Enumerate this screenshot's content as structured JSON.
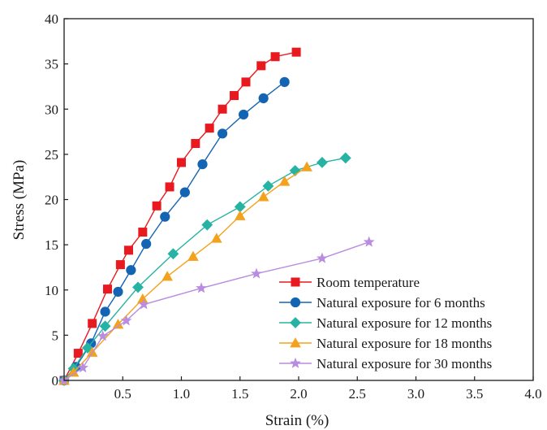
{
  "chart_data": {
    "type": "line",
    "title": "",
    "xlabel": "Strain (%)",
    "ylabel": "Stress (MPa)",
    "xlim": [
      0,
      4.0
    ],
    "ylim": [
      0,
      40
    ],
    "xticks": [
      0.5,
      1.0,
      1.5,
      2.0,
      2.5,
      3.0,
      3.5,
      4.0
    ],
    "xtick_labels": [
      "0.5",
      "1.0",
      "1.5",
      "2.0",
      "2.5",
      "3.0",
      "3.5",
      "4.0"
    ],
    "yticks": [
      0,
      5,
      10,
      15,
      20,
      25,
      30,
      35,
      40
    ],
    "ytick_labels": [
      "0",
      "5",
      "10",
      "15",
      "20",
      "25",
      "30",
      "35",
      "40"
    ],
    "grid": false,
    "legend_position": "bottom-right",
    "series": [
      {
        "name": "Room temperature",
        "marker": "square",
        "color": "#e8191f",
        "x": [
          0,
          0.12,
          0.24,
          0.37,
          0.48,
          0.55,
          0.67,
          0.79,
          0.9,
          1.0,
          1.12,
          1.24,
          1.35,
          1.45,
          1.55,
          1.68,
          1.8,
          1.98
        ],
        "y": [
          0,
          3.0,
          6.3,
          10.1,
          12.8,
          14.4,
          16.4,
          19.3,
          21.4,
          24.1,
          26.2,
          27.9,
          30.0,
          31.5,
          33.0,
          34.8,
          35.8,
          36.3
        ]
      },
      {
        "name": "Natural exposure for 6 months",
        "marker": "circle",
        "color": "#1464b4",
        "x": [
          0,
          0.1,
          0.23,
          0.35,
          0.46,
          0.57,
          0.7,
          0.86,
          1.03,
          1.18,
          1.35,
          1.53,
          1.7,
          1.88
        ],
        "y": [
          0,
          1.5,
          4.1,
          7.6,
          9.8,
          12.2,
          15.1,
          18.1,
          20.8,
          23.9,
          27.3,
          29.4,
          31.2,
          33.0
        ]
      },
      {
        "name": "Natural exposure for 12 months",
        "marker": "diamond",
        "color": "#26b3a3",
        "x": [
          0,
          0.08,
          0.2,
          0.35,
          0.63,
          0.93,
          1.22,
          1.5,
          1.74,
          1.97,
          2.2,
          2.4
        ],
        "y": [
          0,
          1.3,
          3.6,
          6.0,
          10.3,
          14.0,
          17.2,
          19.2,
          21.5,
          23.2,
          24.1,
          24.6
        ]
      },
      {
        "name": "Natural exposure for 18 months",
        "marker": "triangle",
        "color": "#f4a21d",
        "x": [
          0,
          0.08,
          0.24,
          0.46,
          0.67,
          0.88,
          1.1,
          1.3,
          1.5,
          1.7,
          1.88,
          2.07
        ],
        "y": [
          0,
          0.9,
          3.1,
          6.2,
          9.0,
          11.5,
          13.7,
          15.7,
          18.2,
          20.3,
          22.0,
          23.6
        ]
      },
      {
        "name": "Natural exposure for 30 months",
        "marker": "star",
        "color": "#b88ce0",
        "x": [
          0,
          0.16,
          0.33,
          0.53,
          0.68,
          1.17,
          1.64,
          2.2,
          2.6
        ],
        "y": [
          0,
          1.4,
          4.9,
          6.6,
          8.4,
          10.2,
          11.8,
          13.5,
          15.3
        ]
      }
    ]
  }
}
